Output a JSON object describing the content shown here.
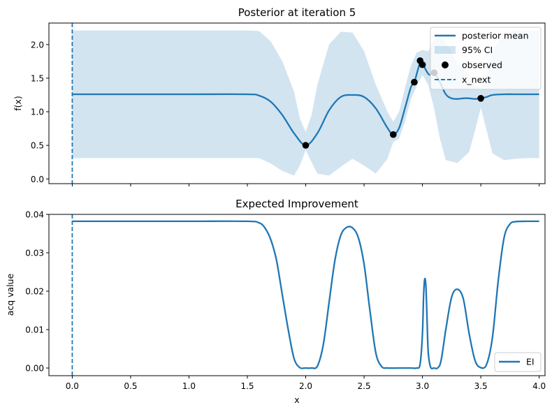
{
  "chart_data": [
    {
      "type": "line",
      "title": "Posterior at iteration 5",
      "xlabel": "",
      "ylabel": "f(x)",
      "xlim": [
        -0.2,
        4.05
      ],
      "ylim": [
        -0.07,
        2.32
      ],
      "xticks": [
        0.0,
        0.5,
        1.0,
        1.5,
        2.0,
        2.5,
        3.0,
        3.5,
        4.0
      ],
      "yticks": [
        0.0,
        0.5,
        1.0,
        1.5,
        2.0
      ],
      "ytick_labels": [
        "0.0",
        "0.5",
        "1.0",
        "1.5",
        "2.0"
      ],
      "grid": false,
      "legend_position": "top-right",
      "legend": [
        "posterior mean",
        "95% CI",
        "observed",
        "x_next"
      ],
      "series": [
        {
          "name": "posterior mean",
          "kind": "line",
          "color": "#1f77b4",
          "x": [
            0.0,
            0.5,
            1.0,
            1.5,
            1.6,
            1.7,
            1.8,
            1.9,
            2.0,
            2.1,
            2.2,
            2.3,
            2.4,
            2.5,
            2.6,
            2.7,
            2.75,
            2.8,
            2.85,
            2.9,
            2.93,
            2.96,
            2.98,
            3.0,
            3.03,
            3.06,
            3.1,
            3.15,
            3.2,
            3.25,
            3.3,
            3.35,
            3.4,
            3.45,
            3.5,
            3.55,
            3.6,
            3.7,
            3.8,
            4.0
          ],
          "y": [
            1.26,
            1.26,
            1.26,
            1.26,
            1.24,
            1.15,
            0.95,
            0.68,
            0.5,
            0.68,
            1.02,
            1.22,
            1.25,
            1.22,
            1.05,
            0.76,
            0.66,
            0.76,
            1.05,
            1.36,
            1.44,
            1.62,
            1.73,
            1.72,
            1.62,
            1.55,
            1.58,
            1.44,
            1.26,
            1.2,
            1.19,
            1.2,
            1.2,
            1.19,
            1.2,
            1.22,
            1.25,
            1.26,
            1.26,
            1.26
          ]
        },
        {
          "name": "95% CI",
          "kind": "band",
          "color": "#1f77b4",
          "opacity": 0.2,
          "x": [
            0.0,
            0.5,
            1.0,
            1.5,
            1.6,
            1.7,
            1.8,
            1.9,
            1.95,
            2.0,
            2.05,
            2.1,
            2.2,
            2.3,
            2.4,
            2.5,
            2.6,
            2.7,
            2.75,
            2.8,
            2.85,
            2.9,
            2.95,
            3.0,
            3.05,
            3.1,
            3.15,
            3.2,
            3.3,
            3.4,
            3.45,
            3.5,
            3.55,
            3.6,
            3.7,
            3.8,
            3.9,
            4.0
          ],
          "lower": [
            0.31,
            0.31,
            0.31,
            0.31,
            0.31,
            0.23,
            0.12,
            0.05,
            0.2,
            0.43,
            0.25,
            0.08,
            0.05,
            0.18,
            0.3,
            0.2,
            0.08,
            0.3,
            0.55,
            0.6,
            0.85,
            1.18,
            1.38,
            1.55,
            1.4,
            1.05,
            0.6,
            0.28,
            0.24,
            0.4,
            0.72,
            1.06,
            0.72,
            0.38,
            0.28,
            0.3,
            0.31,
            0.31
          ],
          "upper": [
            2.21,
            2.21,
            2.21,
            2.21,
            2.2,
            2.05,
            1.75,
            1.3,
            0.9,
            0.7,
            0.95,
            1.4,
            2.0,
            2.19,
            2.18,
            1.9,
            1.4,
            1.0,
            0.85,
            1.0,
            1.35,
            1.68,
            1.88,
            1.92,
            1.9,
            2.06,
            2.12,
            2.04,
            1.72,
            1.55,
            1.42,
            1.34,
            1.55,
            1.9,
            2.18,
            2.21,
            2.21,
            2.21
          ]
        },
        {
          "name": "observed",
          "kind": "scatter",
          "color": "#000000",
          "x": [
            2.0,
            2.75,
            2.93,
            2.98,
            3.0,
            3.1,
            3.5
          ],
          "y": [
            0.5,
            0.66,
            1.44,
            1.76,
            1.7,
            1.58,
            1.2
          ]
        },
        {
          "name": "x_next",
          "kind": "vline",
          "color": "#1f77b4",
          "x": 0.0
        }
      ]
    },
    {
      "type": "line",
      "title": "Expected Improvement",
      "xlabel": "x",
      "ylabel": "acq value",
      "xlim": [
        -0.2,
        4.05
      ],
      "ylim": [
        -0.002,
        0.04
      ],
      "xticks": [
        0.0,
        0.5,
        1.0,
        1.5,
        2.0,
        2.5,
        3.0,
        3.5,
        4.0
      ],
      "xtick_labels": [
        "0.0",
        "0.5",
        "1.0",
        "1.5",
        "2.0",
        "2.5",
        "3.0",
        "3.5",
        "4.0"
      ],
      "yticks": [
        0.0,
        0.01,
        0.02,
        0.03,
        0.04
      ],
      "ytick_labels": [
        "0.00",
        "0.01",
        "0.02",
        "0.03",
        "0.04"
      ],
      "grid": false,
      "legend_position": "bottom-right",
      "legend": [
        "EI"
      ],
      "series": [
        {
          "name": "EI",
          "kind": "line",
          "color": "#1f77b4",
          "x": [
            0.0,
            0.5,
            1.0,
            1.5,
            1.6,
            1.65,
            1.7,
            1.75,
            1.8,
            1.85,
            1.9,
            1.95,
            2.0,
            2.05,
            2.1,
            2.15,
            2.2,
            2.25,
            2.3,
            2.35,
            2.4,
            2.45,
            2.5,
            2.55,
            2.6,
            2.65,
            2.7,
            2.8,
            2.9,
            2.95,
            2.98,
            3.0,
            3.01,
            3.02,
            3.03,
            3.04,
            3.05,
            3.07,
            3.1,
            3.13,
            3.16,
            3.2,
            3.25,
            3.3,
            3.35,
            3.4,
            3.45,
            3.5,
            3.55,
            3.6,
            3.65,
            3.7,
            3.75,
            3.8,
            3.9,
            4.0
          ],
          "y": [
            0.0382,
            0.0382,
            0.0382,
            0.0382,
            0.0378,
            0.0365,
            0.0335,
            0.028,
            0.019,
            0.01,
            0.0025,
            0.0001,
            0.0,
            0.0,
            0.0005,
            0.006,
            0.017,
            0.028,
            0.0345,
            0.0366,
            0.0365,
            0.034,
            0.027,
            0.015,
            0.004,
            0.0004,
            0.0,
            0.0,
            0.0,
            0.0,
            0.001,
            0.009,
            0.019,
            0.0232,
            0.021,
            0.012,
            0.004,
            0.0002,
            0.0,
            0.0,
            0.002,
            0.01,
            0.0185,
            0.0205,
            0.018,
            0.009,
            0.002,
            0.0001,
            0.001,
            0.008,
            0.023,
            0.034,
            0.0375,
            0.0381,
            0.0382,
            0.0382
          ]
        },
        {
          "name": "x_next",
          "kind": "vline",
          "color": "#1f77b4",
          "x": 0.0
        }
      ]
    }
  ]
}
